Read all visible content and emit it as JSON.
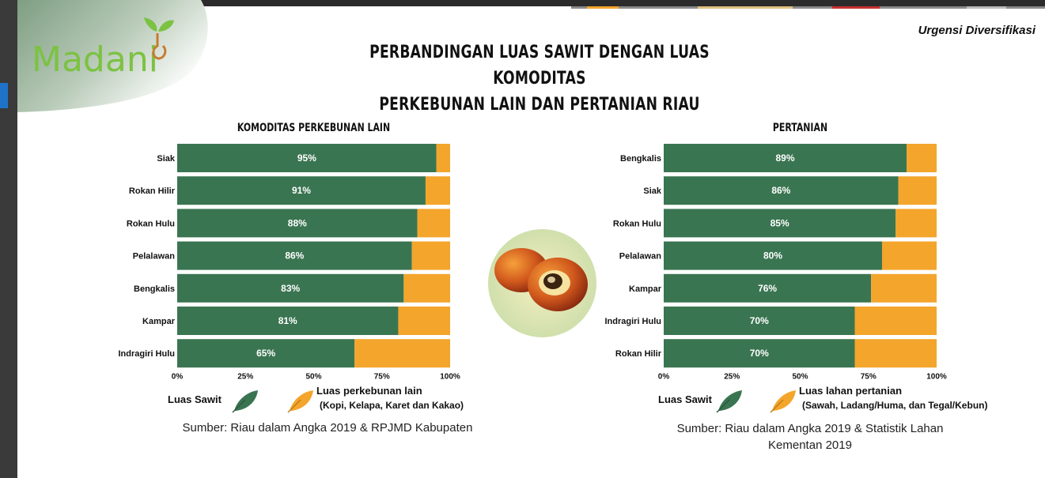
{
  "header": {
    "logo_text": "Madani",
    "corner_label": "Urgensi Diversifikasi",
    "title_line1": "PERBANDINGAN LUAS SAWIT DENGAN LUAS KOMODITAS",
    "title_line2": "PERKEBUNAN LAIN DAN PERTANIAN RIAU"
  },
  "colors": {
    "sawit": "#3a7551",
    "other": "#f4a52c",
    "brand_green": "#7cc242"
  },
  "chart_data": [
    {
      "type": "bar",
      "orientation": "horizontal",
      "stacked": "100%",
      "title": "KOMODITAS PERKEBUNAN LAIN",
      "categories": [
        "Siak",
        "Rokan Hilir",
        "Rokan Hulu",
        "Pelalawan",
        "Bengkalis",
        "Kampar",
        "Indragiri Hulu"
      ],
      "series": [
        {
          "name": "Luas Sawit",
          "values": [
            95,
            91,
            88,
            86,
            83,
            81,
            65
          ]
        },
        {
          "name": "Luas perkebunan lain",
          "values": [
            5,
            9,
            12,
            14,
            17,
            19,
            35
          ]
        }
      ],
      "data_labels": [
        "95%",
        "91%",
        "88%",
        "86%",
        "83%",
        "81%",
        "65%"
      ],
      "x_ticks": [
        "0%",
        "25%",
        "50%",
        "75%",
        "100%"
      ],
      "xlim": [
        0,
        100
      ]
    },
    {
      "type": "bar",
      "orientation": "horizontal",
      "stacked": "100%",
      "title": "PERTANIAN",
      "categories": [
        "Bengkalis",
        "Siak",
        "Rokan Hulu",
        "Pelalawan",
        "Kampar",
        "Indragiri Hulu",
        "Rokan Hilir"
      ],
      "series": [
        {
          "name": "Luas Sawit",
          "values": [
            89,
            86,
            85,
            80,
            76,
            70,
            70
          ]
        },
        {
          "name": "Luas lahan pertanian",
          "values": [
            11,
            14,
            15,
            20,
            24,
            30,
            30
          ]
        }
      ],
      "data_labels": [
        "89%",
        "86%",
        "85%",
        "80%",
        "76%",
        "70%",
        "70%"
      ],
      "x_ticks": [
        "0%",
        "25%",
        "50%",
        "75%",
        "100%"
      ],
      "xlim": [
        0,
        100
      ]
    }
  ],
  "legends": [
    {
      "sawit_label": "Luas Sawit",
      "other_label": "Luas perkebunan lain",
      "other_sub": "(Kopi, Kelapa, Karet dan Kakao)"
    },
    {
      "sawit_label": "Luas Sawit",
      "other_label": "Luas lahan pertanian",
      "other_sub": "(Sawah, Ladang/Huma, dan Tegal/Kebun)"
    }
  ],
  "sources": [
    {
      "line1": "Sumber: Riau dalam Angka 2019 & RPJMD Kabupaten"
    },
    {
      "line1": "Sumber: Riau dalam Angka 2019 & Statistik Lahan",
      "line2": "Kementan 2019"
    }
  ]
}
